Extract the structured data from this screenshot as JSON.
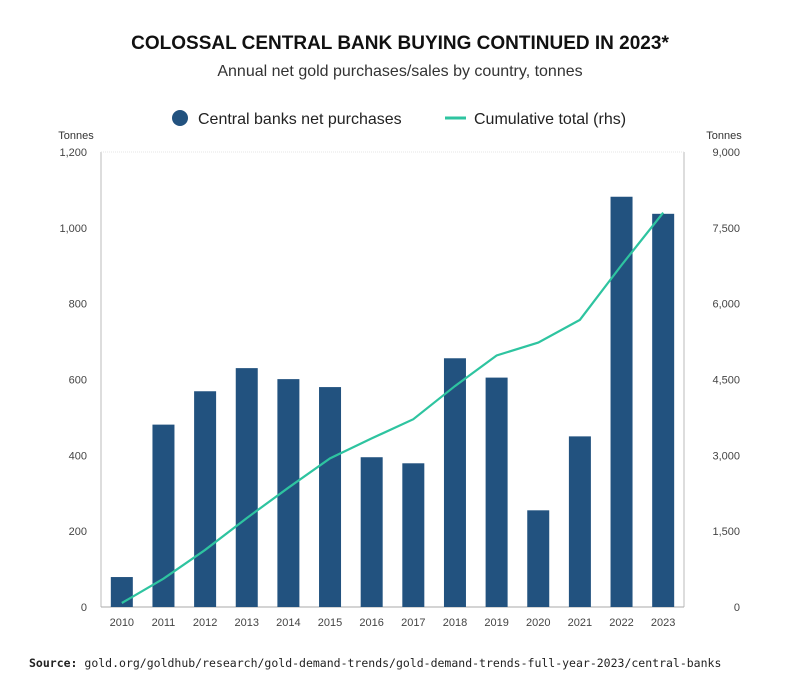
{
  "title": "COLOSSAL CENTRAL BANK BUYING CONTINUED IN 2023*",
  "subtitle": "Annual net gold purchases/sales by country, tonnes",
  "source": {
    "label": "Source:",
    "text": "gold.org/goldhub/research/gold-demand-trends/gold-demand-trends-full-year-2023/central-banks"
  },
  "chart_data": {
    "type": "bar",
    "categories": [
      "2010",
      "2011",
      "2012",
      "2013",
      "2014",
      "2015",
      "2016",
      "2017",
      "2018",
      "2019",
      "2020",
      "2021",
      "2022",
      "2023"
    ],
    "series": [
      {
        "name": "Central banks net purchases",
        "type": "bar",
        "axis": "left",
        "color": "#22527f",
        "values": [
          79,
          481,
          569,
          630,
          601,
          580,
          395,
          379,
          656,
          605,
          255,
          450,
          1082,
          1037
        ]
      },
      {
        "name": "Cumulative total (rhs)",
        "type": "line",
        "axis": "right",
        "color": "#2ec4a0",
        "values": [
          79,
          560,
          1129,
          1759,
          2360,
          2940,
          3335,
          3714,
          4370,
          4975,
          5230,
          5680,
          6762,
          7799
        ]
      }
    ],
    "ylabel": "Tonnes",
    "ylabel_right": "Tonnes",
    "ylim": [
      0,
      1200
    ],
    "ylim_right": [
      0,
      9000
    ],
    "yticks": [
      "0",
      "200",
      "400",
      "600",
      "800",
      "1,000",
      "1,200"
    ],
    "yticks_right": [
      "0",
      "1,500",
      "3,000",
      "4,500",
      "6,000",
      "7,500",
      "9,000"
    ],
    "grid": false,
    "legend": "top"
  }
}
